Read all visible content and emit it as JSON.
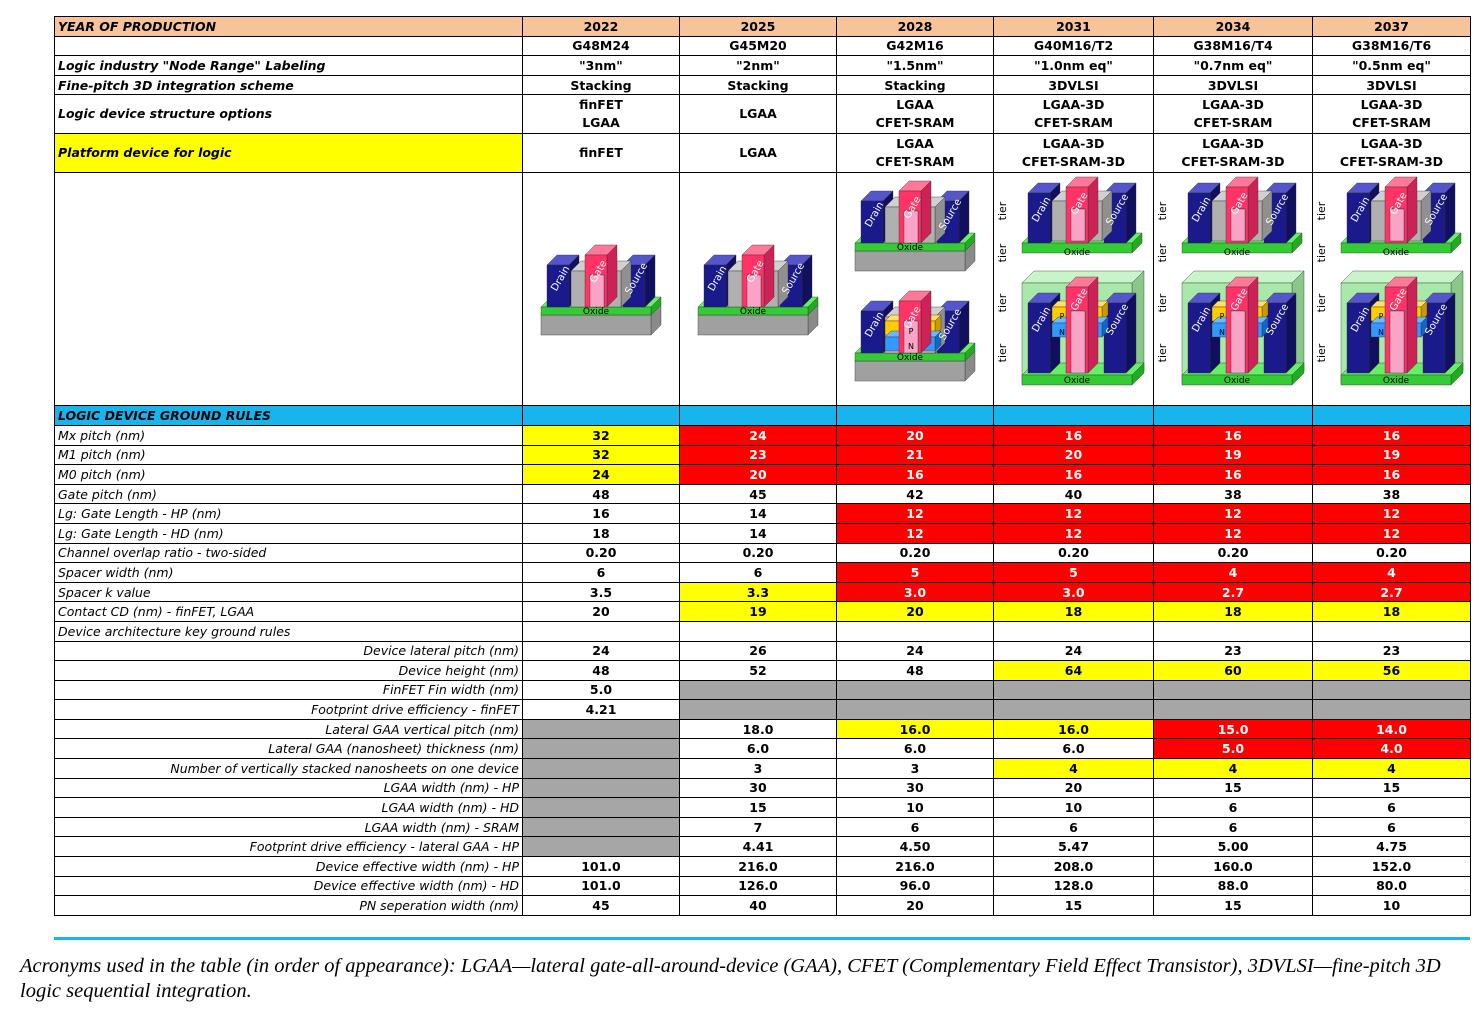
{
  "header": {
    "label": "YEAR OF PRODUCTION",
    "years": [
      "2022",
      "2025",
      "2028",
      "2031",
      "2034",
      "2037"
    ]
  },
  "node_rows": [
    {
      "label": "",
      "values": [
        "G48M24",
        "G45M20",
        "G42M16",
        "G40M16/T2",
        "G38M16/T4",
        "G38M16/T6"
      ]
    },
    {
      "label": "Logic industry \"Node Range\" Labeling",
      "values": [
        "\"3nm\"",
        "\"2nm\"",
        "\"1.5nm\"",
        "\"1.0nm eq\"",
        "\"0.7nm eq\"",
        "\"0.5nm eq\""
      ]
    },
    {
      "label": "Fine-pitch 3D integration scheme",
      "values": [
        "Stacking",
        "Stacking",
        "Stacking",
        "3DVLSI",
        "3DVLSI",
        "3DVLSI"
      ]
    }
  ],
  "structure_row": {
    "label": "Logic device structure options",
    "values": [
      [
        "finFET",
        "LGAA"
      ],
      [
        "LGAA"
      ],
      [
        "LGAA",
        "CFET-SRAM"
      ],
      [
        "LGAA-3D",
        "CFET-SRAM"
      ],
      [
        "LGAA-3D",
        "CFET-SRAM"
      ],
      [
        "LGAA-3D",
        "CFET-SRAM"
      ]
    ]
  },
  "platform_row": {
    "label": "Platform device for logic",
    "values": [
      [
        "finFET"
      ],
      [
        "LGAA"
      ],
      [
        "LGAA",
        "CFET-SRAM"
      ],
      [
        "LGAA-3D",
        "CFET-SRAM-3D"
      ],
      [
        "LGAA-3D",
        "CFET-SRAM-3D"
      ],
      [
        "LGAA-3D",
        "CFET-SRAM-3D"
      ]
    ]
  },
  "device_labels": {
    "drain": "Drain",
    "gate": "Gate",
    "source": "Source",
    "oxide": "Oxide",
    "p": "P",
    "n": "N",
    "tier": "tier"
  },
  "section_title": "LOGIC DEVICE GROUND RULES",
  "rules": [
    {
      "label": "Mx pitch (nm)",
      "values": [
        "32",
        "24",
        "20",
        "16",
        "16",
        "16"
      ],
      "colors": [
        "y",
        "r",
        "r",
        "r",
        "r",
        "r"
      ]
    },
    {
      "label": "M1 pitch (nm)",
      "values": [
        "32",
        "23",
        "21",
        "20",
        "19",
        "19"
      ],
      "colors": [
        "y",
        "r",
        "r",
        "r",
        "r",
        "r"
      ]
    },
    {
      "label": "M0 pitch (nm)",
      "values": [
        "24",
        "20",
        "16",
        "16",
        "16",
        "16"
      ],
      "colors": [
        "y",
        "r",
        "r",
        "r",
        "r",
        "r"
      ]
    },
    {
      "label": "Gate pitch (nm)",
      "values": [
        "48",
        "45",
        "42",
        "40",
        "38",
        "38"
      ],
      "colors": [
        "",
        "",
        "",
        "",
        "",
        ""
      ]
    },
    {
      "label": "Lg: Gate Length - HP (nm)",
      "values": [
        "16",
        "14",
        "12",
        "12",
        "12",
        "12"
      ],
      "colors": [
        "",
        "",
        "r",
        "r",
        "r",
        "r"
      ]
    },
    {
      "label": "Lg: Gate Length - HD (nm)",
      "values": [
        "18",
        "14",
        "12",
        "12",
        "12",
        "12"
      ],
      "colors": [
        "",
        "",
        "r",
        "r",
        "r",
        "r"
      ]
    },
    {
      "label": "Channel overlap ratio - two-sided",
      "values": [
        "0.20",
        "0.20",
        "0.20",
        "0.20",
        "0.20",
        "0.20"
      ],
      "colors": [
        "",
        "",
        "",
        "",
        "",
        ""
      ]
    },
    {
      "label": "Spacer width (nm)",
      "values": [
        "6",
        "6",
        "5",
        "5",
        "4",
        "4"
      ],
      "colors": [
        "",
        "",
        "r",
        "r",
        "r",
        "r"
      ]
    },
    {
      "label": "Spacer k value",
      "values": [
        "3.5",
        "3.3",
        "3.0",
        "3.0",
        "2.7",
        "2.7"
      ],
      "colors": [
        "",
        "y",
        "r",
        "r",
        "r",
        "r"
      ]
    },
    {
      "label": "Contact CD (nm) - finFET, LGAA",
      "values": [
        "20",
        "19",
        "20",
        "18",
        "18",
        "18"
      ],
      "colors": [
        "",
        "y",
        "y",
        "y",
        "y",
        "y"
      ]
    },
    {
      "label": "Device architecture key ground rules",
      "values": [
        "",
        "",
        "",
        "",
        "",
        ""
      ],
      "colors": [
        "",
        "",
        "",
        "",
        "",
        ""
      ]
    },
    {
      "label": "Device lateral pitch (nm)",
      "indent": true,
      "values": [
        "24",
        "26",
        "24",
        "24",
        "23",
        "23"
      ],
      "colors": [
        "",
        "",
        "",
        "",
        "",
        ""
      ]
    },
    {
      "label": "Device height (nm)",
      "indent": true,
      "values": [
        "48",
        "52",
        "48",
        "64",
        "60",
        "56"
      ],
      "colors": [
        "",
        "",
        "",
        "y",
        "y",
        "y"
      ]
    },
    {
      "label": "FinFET Fin width (nm)",
      "indent": true,
      "values": [
        "5.0",
        "",
        "",
        "",
        "",
        ""
      ],
      "colors": [
        "",
        "g",
        "g",
        "g",
        "g",
        "g"
      ]
    },
    {
      "label": "Footprint drive efficiency -  finFET",
      "indent": true,
      "values": [
        "4.21",
        "",
        "",
        "",
        "",
        ""
      ],
      "colors": [
        "",
        "g",
        "g",
        "g",
        "g",
        "g"
      ]
    },
    {
      "label": "Lateral GAA vertical pitch (nm)",
      "indent": true,
      "values": [
        "",
        "18.0",
        "16.0",
        "16.0",
        "15.0",
        "14.0"
      ],
      "colors": [
        "g",
        "",
        "y",
        "y",
        "r",
        "r"
      ]
    },
    {
      "label": "Lateral GAA (nanosheet) thickness (nm)",
      "indent": true,
      "values": [
        "",
        "6.0",
        "6.0",
        "6.0",
        "5.0",
        "4.0"
      ],
      "colors": [
        "g",
        "",
        "",
        "",
        "r",
        "r"
      ]
    },
    {
      "label": "Number of  vertically stacked nanosheets on one device",
      "indent": true,
      "values": [
        "",
        "3",
        "3",
        "4",
        "4",
        "4"
      ],
      "colors": [
        "g",
        "",
        "",
        "y",
        "y",
        "y"
      ]
    },
    {
      "label": "LGAA width (nm) - HP",
      "indent": true,
      "values": [
        "",
        "30",
        "30",
        "20",
        "15",
        "15"
      ],
      "colors": [
        "g",
        "",
        "",
        "",
        "",
        ""
      ]
    },
    {
      "label": "LGAA width (nm) - HD",
      "indent": true,
      "values": [
        "",
        "15",
        "10",
        "10",
        "6",
        "6"
      ],
      "colors": [
        "g",
        "",
        "",
        "",
        "",
        ""
      ]
    },
    {
      "label": "LGAA width (nm) - SRAM",
      "indent": true,
      "values": [
        "",
        "7",
        "6",
        "6",
        "6",
        "6"
      ],
      "colors": [
        "g",
        "",
        "",
        "",
        "",
        ""
      ]
    },
    {
      "label": "Footprint drive efficiency - lateral GAA - HP",
      "indent": true,
      "values": [
        "",
        "4.41",
        "4.50",
        "5.47",
        "5.00",
        "4.75"
      ],
      "colors": [
        "g",
        "",
        "",
        "",
        "",
        ""
      ]
    },
    {
      "label": "Device effective width (nm) - HP",
      "indent": true,
      "values": [
        "101.0",
        "216.0",
        "216.0",
        "208.0",
        "160.0",
        "152.0"
      ],
      "colors": [
        "",
        "",
        "",
        "",
        "",
        ""
      ]
    },
    {
      "label": "Device effective width (nm) - HD",
      "indent": true,
      "values": [
        "101.0",
        "126.0",
        "96.0",
        "128.0",
        "88.0",
        "80.0"
      ],
      "colors": [
        "",
        "",
        "",
        "",
        "",
        ""
      ]
    },
    {
      "label": "PN seperation width (nm)",
      "indent": true,
      "values": [
        "45",
        "40",
        "20",
        "15",
        "15",
        "10"
      ],
      "colors": [
        "",
        "",
        "",
        "",
        "",
        ""
      ]
    }
  ],
  "caption": "Acronyms used in the table (in order of appearance): LGAA—lateral gate-all-around-device (GAA), CFET (Complementary Field Effect Transistor), 3DVLSI—fine-pitch 3D logic sequential integration.",
  "colors": {
    "header_bg": "#f7c49a",
    "section_bg": "#18b4ee",
    "yellow": "#ffff00",
    "red": "#ff0000",
    "gray": "#a6a6a6"
  }
}
